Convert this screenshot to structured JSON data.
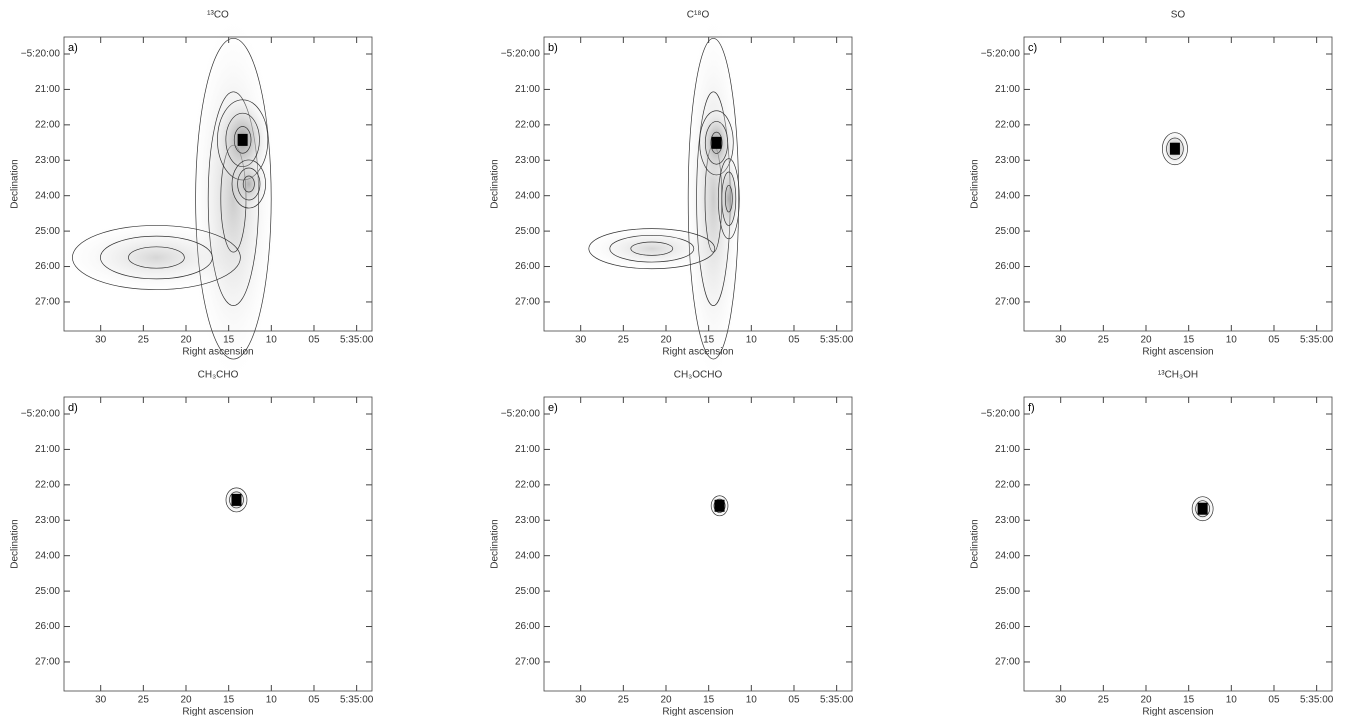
{
  "chart_data": [
    {
      "type": "contour-map",
      "title": "¹³CO",
      "panel_label": "a)",
      "xlabel": "Right ascension",
      "ylabel": "Declination",
      "xlim": [
        34.3,
        -1.8
      ],
      "xticks": [
        30,
        25,
        20,
        15,
        10,
        {
          "value": 5,
          "label": "05"
        },
        {
          "value": 0,
          "label": "5:35:00"
        }
      ],
      "ylim": [
        -327.82,
        -319.52
      ],
      "yticks": [
        {
          "value": -320,
          "label": "−5:20:00"
        },
        {
          "value": -321,
          "label": "21:00"
        },
        {
          "value": -322,
          "label": "22:00"
        },
        {
          "value": -323,
          "label": "23:00"
        },
        {
          "value": -324,
          "label": "24:00"
        },
        {
          "value": -325,
          "label": "25:00"
        },
        {
          "value": -326,
          "label": "26:00"
        },
        {
          "value": -327,
          "label": "27:00"
        }
      ]
    },
    {
      "type": "contour-map",
      "title": "C¹⁸O",
      "panel_label": "b)",
      "xlabel": "Right ascension",
      "ylabel": "Declination",
      "xlim": [
        34.3,
        -1.8
      ],
      "xticks": [
        30,
        25,
        20,
        15,
        10,
        {
          "value": 5,
          "label": "05"
        },
        {
          "value": 0,
          "label": "5:35:00"
        }
      ],
      "ylim": [
        -327.82,
        -319.52
      ],
      "yticks": [
        {
          "value": -320,
          "label": "−5:20:00"
        },
        {
          "value": -321,
          "label": "21:00"
        },
        {
          "value": -322,
          "label": "22:00"
        },
        {
          "value": -323,
          "label": "23:00"
        },
        {
          "value": -324,
          "label": "24:00"
        },
        {
          "value": -325,
          "label": "25:00"
        },
        {
          "value": -326,
          "label": "26:00"
        },
        {
          "value": -327,
          "label": "27:00"
        }
      ]
    },
    {
      "type": "contour-map",
      "title": "SO",
      "panel_label": "c)",
      "xlabel": "Right ascension",
      "ylabel": "Declination",
      "xlim": [
        34.3,
        -1.8
      ],
      "xticks": [
        30,
        25,
        20,
        15,
        10,
        {
          "value": 5,
          "label": "05"
        },
        {
          "value": 0,
          "label": "5:35:00"
        }
      ],
      "ylim": [
        -327.82,
        -319.52
      ],
      "yticks": [
        {
          "value": -320,
          "label": "−5:20:00"
        },
        {
          "value": -321,
          "label": "21:00"
        },
        {
          "value": -322,
          "label": "22:00"
        },
        {
          "value": -323,
          "label": "23:00"
        },
        {
          "value": -324,
          "label": "24:00"
        },
        {
          "value": -325,
          "label": "25:00"
        },
        {
          "value": -326,
          "label": "26:00"
        },
        {
          "value": -327,
          "label": "27:00"
        }
      ]
    },
    {
      "type": "contour-map",
      "title": "CH₃CHO",
      "panel_label": "d)",
      "xlabel": "Right ascension",
      "ylabel": "Declination",
      "xlim": [
        34.3,
        -1.8
      ],
      "xticks": [
        30,
        25,
        20,
        15,
        10,
        {
          "value": 5,
          "label": "05"
        },
        {
          "value": 0,
          "label": "5:35:00"
        }
      ],
      "ylim": [
        -327.82,
        -319.52
      ],
      "yticks": [
        {
          "value": -320,
          "label": "−5:20:00"
        },
        {
          "value": -321,
          "label": "21:00"
        },
        {
          "value": -322,
          "label": "22:00"
        },
        {
          "value": -323,
          "label": "23:00"
        },
        {
          "value": -324,
          "label": "24:00"
        },
        {
          "value": -325,
          "label": "25:00"
        },
        {
          "value": -326,
          "label": "26:00"
        },
        {
          "value": -327,
          "label": "27:00"
        }
      ]
    },
    {
      "type": "contour-map",
      "title": "CH₃OCHO",
      "panel_label": "e)",
      "xlabel": "Right ascension",
      "ylabel": "Declination",
      "xlim": [
        34.3,
        -1.8
      ],
      "xticks": [
        30,
        25,
        20,
        15,
        10,
        {
          "value": 5,
          "label": "05"
        },
        {
          "value": 0,
          "label": "5:35:00"
        }
      ],
      "ylim": [
        -327.82,
        -319.52
      ],
      "yticks": [
        {
          "value": -320,
          "label": "−5:20:00"
        },
        {
          "value": -321,
          "label": "21:00"
        },
        {
          "value": -322,
          "label": "22:00"
        },
        {
          "value": -323,
          "label": "23:00"
        },
        {
          "value": -324,
          "label": "24:00"
        },
        {
          "value": -325,
          "label": "25:00"
        },
        {
          "value": -326,
          "label": "26:00"
        },
        {
          "value": -327,
          "label": "27:00"
        }
      ]
    },
    {
      "type": "contour-map",
      "title": "¹³CH₃OH",
      "panel_label": "f)",
      "xlabel": "Right ascension",
      "ylabel": "Declination",
      "xlim": [
        34.3,
        -1.8
      ],
      "xticks": [
        30,
        25,
        20,
        15,
        10,
        {
          "value": 5,
          "label": "05"
        },
        {
          "value": 0,
          "label": "5:35:00"
        }
      ],
      "ylim": [
        -327.82,
        -319.52
      ],
      "yticks": [
        {
          "value": -320,
          "label": "−5:20:00"
        },
        {
          "value": -321,
          "label": "21:00"
        },
        {
          "value": -322,
          "label": "22:00"
        },
        {
          "value": -323,
          "label": "23:00"
        },
        {
          "value": -324,
          "label": "24:00"
        },
        {
          "value": -325,
          "label": "25:00"
        },
        {
          "value": -326,
          "label": "26:00"
        },
        {
          "value": -327,
          "label": "27:00"
        }
      ]
    }
  ]
}
